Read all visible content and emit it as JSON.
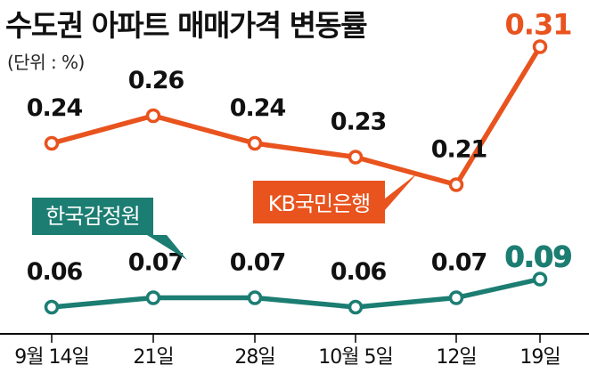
{
  "title": "수도권 아파트 매매가격 변동률",
  "unit_label": "(단위 : %)",
  "colors": {
    "kb": "#e8531e",
    "reb": "#1c7d72",
    "axis": "#000000",
    "text": "#111111"
  },
  "chart_data": {
    "type": "line",
    "title": "수도권 아파트 매매가격 변동률",
    "unit": "%",
    "categories": [
      "9월 14일",
      "21일",
      "28일",
      "10월 5일",
      "12일",
      "19일"
    ],
    "series": [
      {
        "name": "KB국민은행",
        "color": "#e8531e",
        "values": [
          0.24,
          0.26,
          0.24,
          0.23,
          0.21,
          0.31
        ],
        "labels": [
          "0.24",
          "0.26",
          "0.24",
          "0.23",
          "0.21",
          "0.31"
        ]
      },
      {
        "name": "한국감정원",
        "color": "#1c7d72",
        "values": [
          0.06,
          0.07,
          0.07,
          0.06,
          0.07,
          0.09
        ],
        "labels": [
          "0.06",
          "0.07",
          "0.07",
          "0.06",
          "0.07",
          "0.09"
        ]
      }
    ],
    "legend": [
      "KB국민은행",
      "한국감정원"
    ],
    "grid": false
  }
}
